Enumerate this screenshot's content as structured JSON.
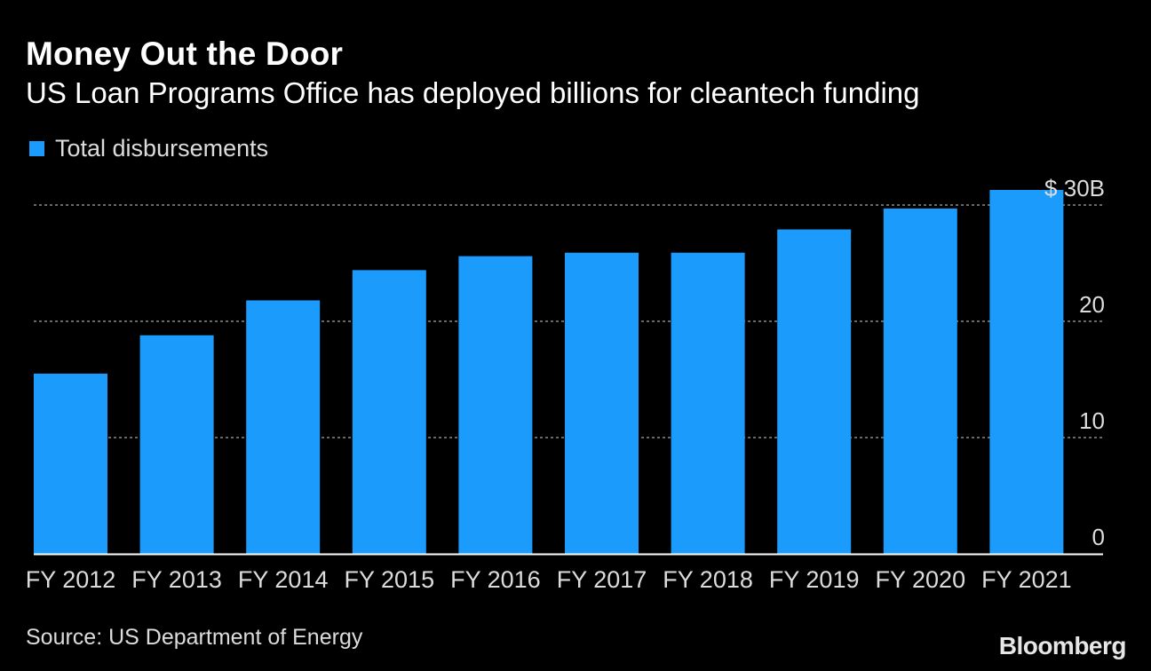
{
  "header": {
    "title": "Money Out the Door",
    "subtitle": "US Loan Programs Office has deployed billions for cleantech funding"
  },
  "legend": {
    "label": "Total disbursements"
  },
  "footer": {
    "source": "Source: US Department of Energy",
    "brand": "Bloomberg"
  },
  "colors": {
    "bar": "#1B9CFC",
    "background": "#000000",
    "grid": "#8a8a8a",
    "axis": "#ffffff",
    "tick_text": "#dcdcdc"
  },
  "chart_data": {
    "type": "bar",
    "title": "Money Out the Door",
    "subtitle": "US Loan Programs Office has deployed billions for cleantech funding",
    "categories": [
      "FY 2012",
      "FY 2013",
      "FY 2014",
      "FY 2015",
      "FY 2016",
      "FY 2017",
      "FY 2018",
      "FY 2019",
      "FY 2020",
      "FY 2021"
    ],
    "series": [
      {
        "name": "Total disbursements",
        "values": [
          15.5,
          18.8,
          21.8,
          24.4,
          25.6,
          25.9,
          25.9,
          27.9,
          29.7,
          31.3
        ]
      }
    ],
    "ylim": [
      0,
      30
    ],
    "yticks": [
      0,
      10,
      20,
      30
    ],
    "ytick_labels": [
      "0",
      "10",
      "20",
      "$ 30B"
    ],
    "y_axis_side": "right",
    "grid": true,
    "legend_position": "top-left"
  }
}
